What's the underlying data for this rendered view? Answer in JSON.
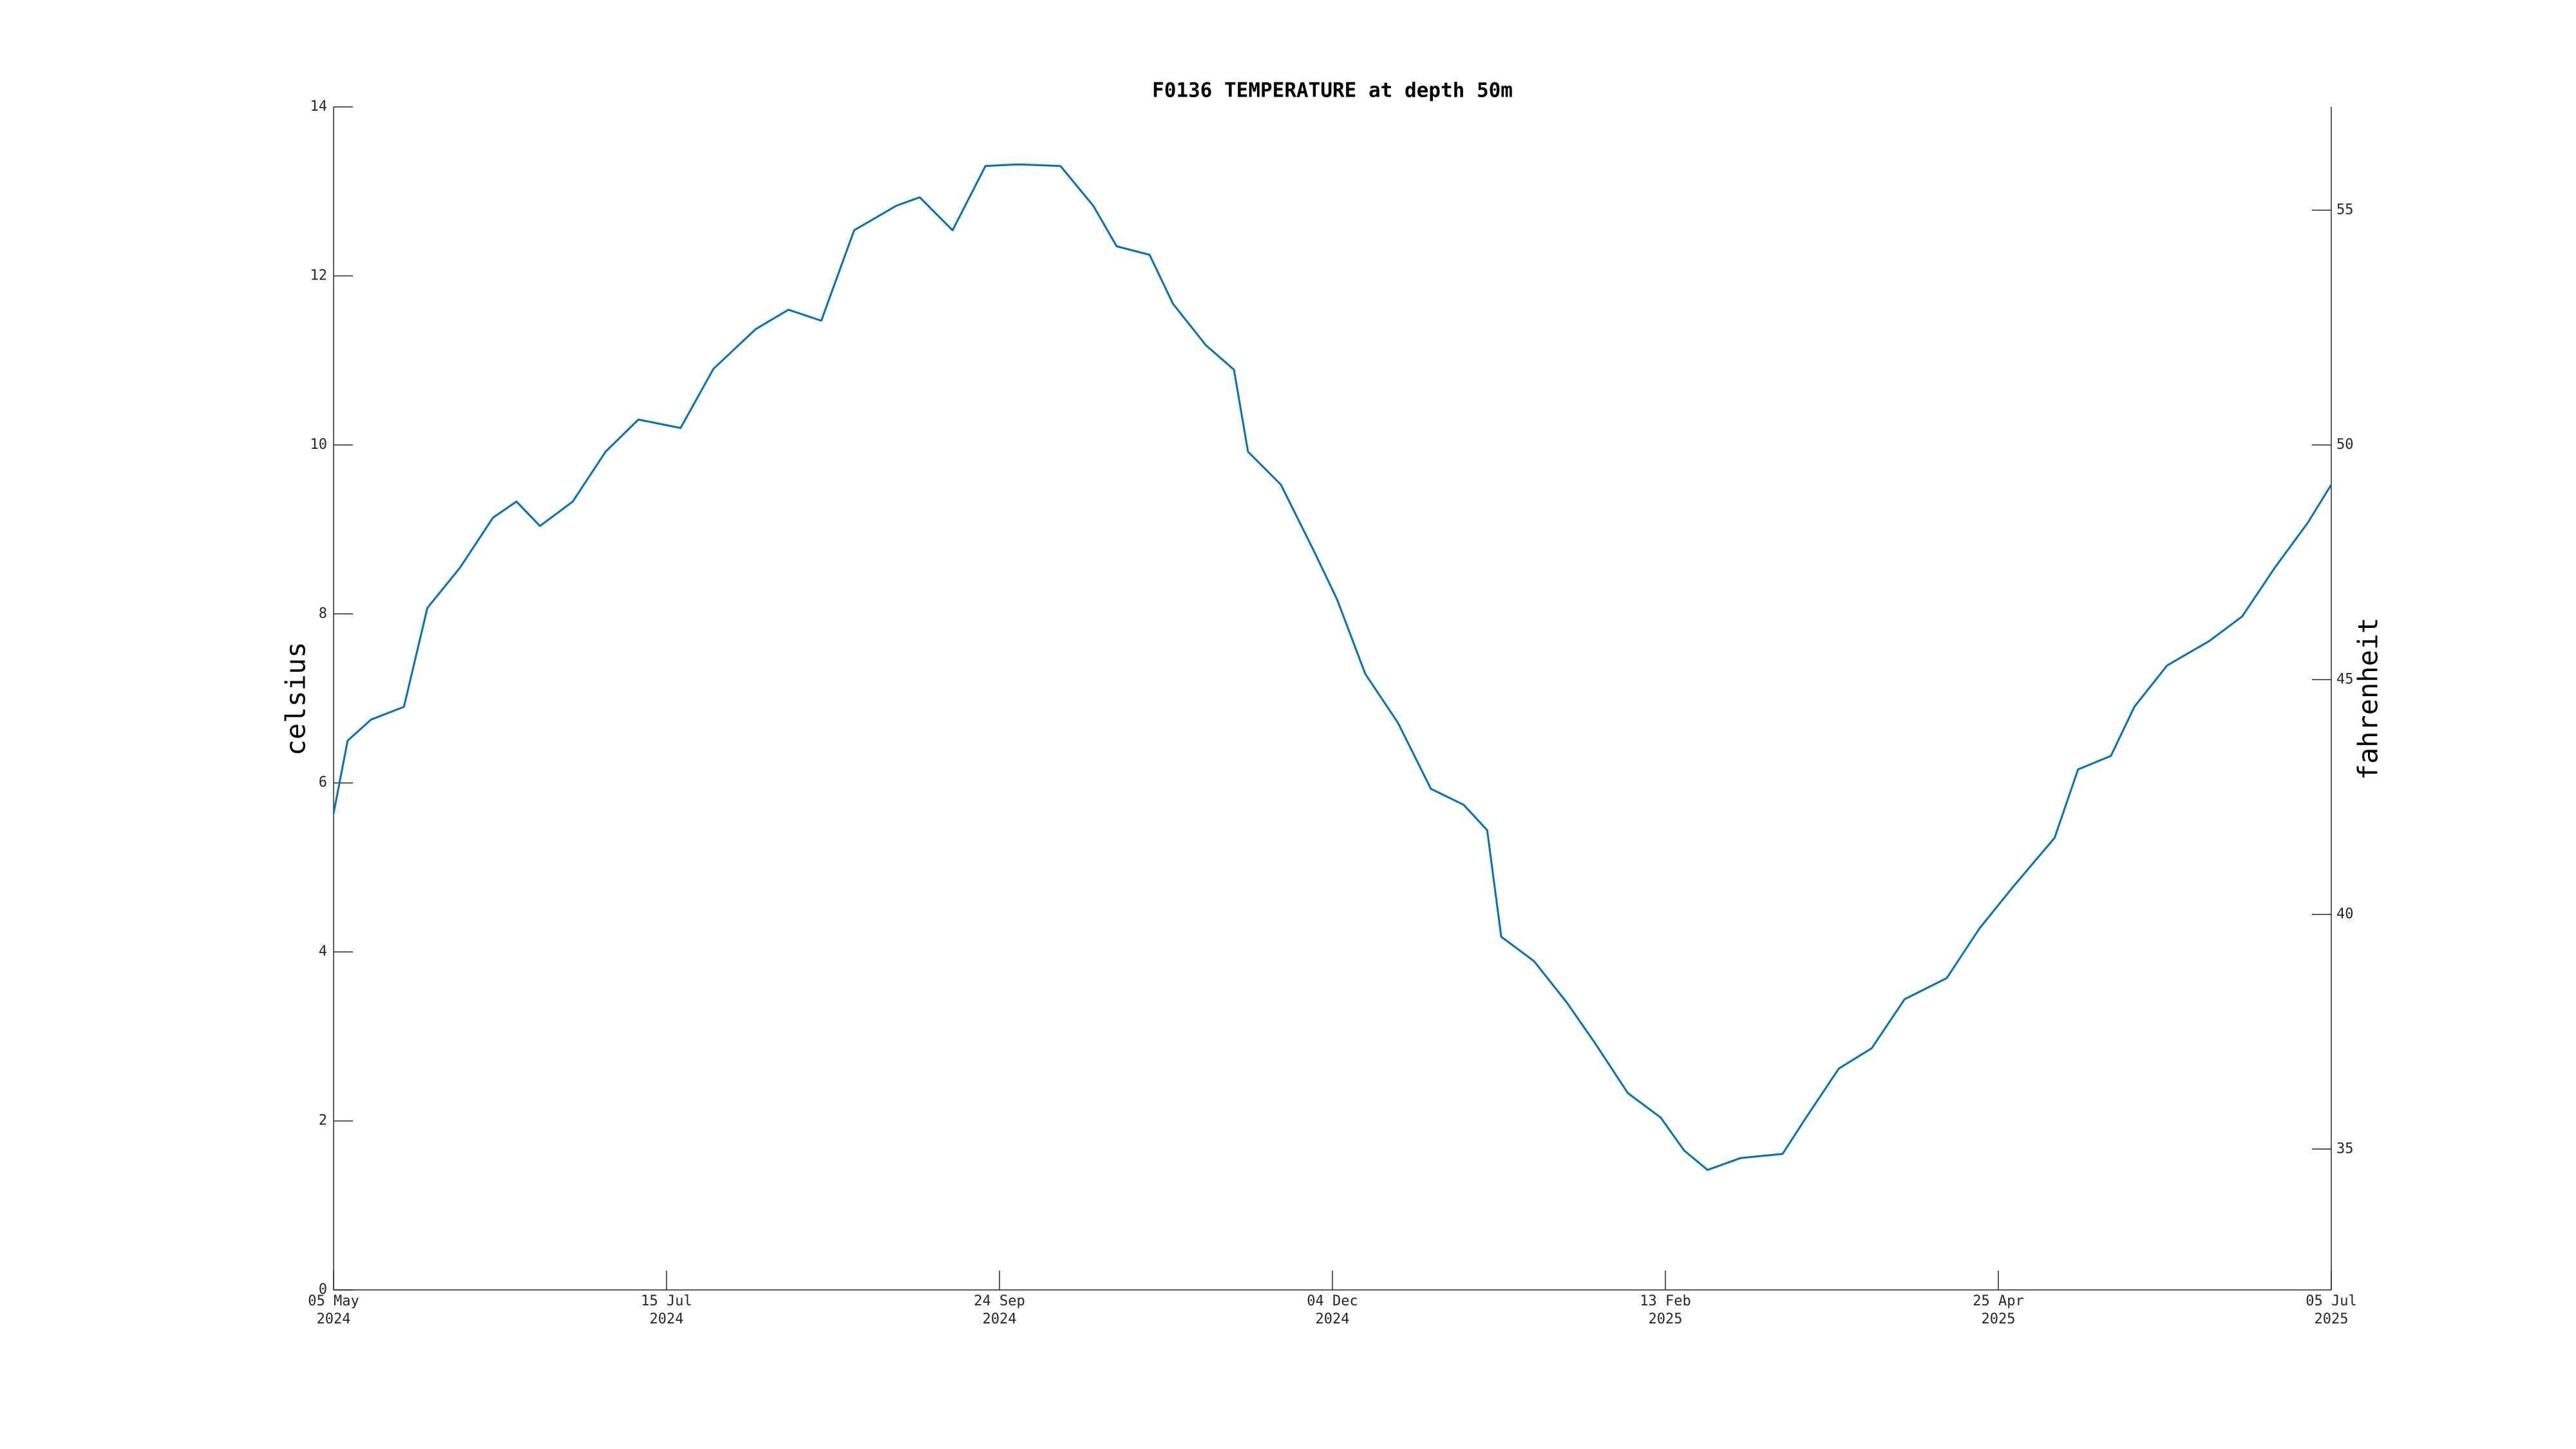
{
  "chart_data": {
    "type": "line",
    "title": "F0136 TEMPERATURE at depth 50m",
    "ylabel": "celsius",
    "y2label": "fahrenheit",
    "x": [
      "2024-05-05",
      "2024-05-08",
      "2024-05-13",
      "2024-05-20",
      "2024-05-25",
      "2024-06-01",
      "2024-06-08",
      "2024-06-13",
      "2024-06-18",
      "2024-06-25",
      "2024-07-02",
      "2024-07-09",
      "2024-07-18",
      "2024-07-25",
      "2024-08-03",
      "2024-08-10",
      "2024-08-17",
      "2024-08-24",
      "2024-09-02",
      "2024-09-07",
      "2024-09-14",
      "2024-09-21",
      "2024-09-28",
      "2024-10-07",
      "2024-10-14",
      "2024-10-19",
      "2024-10-26",
      "2024-10-31",
      "2024-11-07",
      "2024-11-13",
      "2024-11-16",
      "2024-11-23",
      "2024-11-30",
      "2024-12-05",
      "2024-12-11",
      "2024-12-18",
      "2024-12-25",
      "2025-01-01",
      "2025-01-06",
      "2025-01-09",
      "2025-01-16",
      "2025-01-23",
      "2025-01-29",
      "2025-02-05",
      "2025-02-12",
      "2025-02-17",
      "2025-02-22",
      "2025-03-01",
      "2025-03-10",
      "2025-03-15",
      "2025-03-22",
      "2025-03-29",
      "2025-04-05",
      "2025-04-14",
      "2025-04-21",
      "2025-04-28",
      "2025-05-07",
      "2025-05-12",
      "2025-05-19",
      "2025-05-24",
      "2025-05-31",
      "2025-06-09",
      "2025-06-16",
      "2025-06-23",
      "2025-06-30",
      "2025-07-05"
    ],
    "values": [
      5.64,
      6.5,
      6.75,
      6.9,
      8.07,
      8.55,
      9.14,
      9.33,
      9.04,
      9.33,
      9.92,
      10.3,
      10.2,
      10.9,
      11.37,
      11.6,
      11.47,
      12.54,
      12.83,
      12.93,
      12.54,
      13.3,
      13.32,
      13.3,
      12.83,
      12.35,
      12.25,
      11.67,
      11.18,
      10.89,
      9.92,
      9.53,
      8.75,
      8.17,
      7.29,
      6.71,
      5.93,
      5.74,
      5.44,
      4.18,
      3.89,
      3.4,
      2.92,
      2.33,
      2.04,
      1.65,
      1.42,
      1.56,
      1.61,
      2.04,
      2.62,
      2.86,
      3.44,
      3.69,
      4.28,
      4.76,
      5.35,
      6.16,
      6.32,
      6.9,
      7.39,
      7.68,
      7.97,
      8.55,
      9.08,
      9.53
    ],
    "color": "#0072bd",
    "xlim": [
      "2024-05-05",
      "2025-07-05"
    ],
    "xticks": [
      {
        "value": "2024-05-05",
        "label": [
          "05 May",
          "2024"
        ]
      },
      {
        "value": "2024-07-15",
        "label": [
          "15 Jul",
          "2024"
        ]
      },
      {
        "value": "2024-09-24",
        "label": [
          "24 Sep",
          "2024"
        ]
      },
      {
        "value": "2024-12-04",
        "label": [
          "04 Dec",
          "2024"
        ]
      },
      {
        "value": "2025-02-13",
        "label": [
          "13 Feb",
          "2025"
        ]
      },
      {
        "value": "2025-04-25",
        "label": [
          "25 Apr",
          "2025"
        ]
      },
      {
        "value": "2025-07-05",
        "label": [
          "05 Jul",
          "2025"
        ]
      }
    ],
    "ylim": [
      0,
      14
    ],
    "yticks": [
      0,
      2,
      4,
      6,
      8,
      10,
      12,
      14
    ],
    "y2lim": [
      32,
      57.2
    ],
    "y2ticks": [
      35,
      40,
      45,
      50,
      55
    ],
    "grid": false
  }
}
